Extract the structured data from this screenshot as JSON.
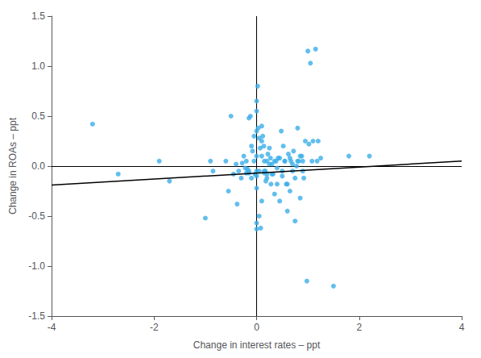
{
  "chart_data": {
    "type": "scatter",
    "xlabel": "Change in interest rates – ppt",
    "ylabel": "Change in ROAs – ppt",
    "xlim": [
      -4,
      4
    ],
    "ylim": [
      -1.5,
      1.5
    ],
    "xticks": [
      -4,
      -2,
      0,
      2,
      4
    ],
    "yticks": [
      -1.5,
      {
        "value": -1.0,
        "label": "-1.0"
      },
      -0.5,
      {
        "value": 0.0,
        "label": "0.0"
      },
      0.5,
      {
        "value": 1.0,
        "label": "1.0"
      },
      1.5
    ],
    "grid": false,
    "reference_lines": {
      "x": [
        0
      ],
      "y": [
        0
      ],
      "color": "#000000"
    },
    "series": [
      {
        "type": "scatter",
        "color": "#3BAEE8",
        "x": [
          -3.2,
          -2.7,
          -1.9,
          -1.7,
          -1.0,
          -0.9,
          -0.85,
          -0.6,
          -0.55,
          -0.5,
          -0.45,
          -0.4,
          -0.38,
          -0.35,
          -0.3,
          -0.28,
          -0.25,
          -0.22,
          -0.2,
          -0.18,
          -0.15,
          -0.12,
          -0.1,
          -0.08,
          -0.05,
          -0.03,
          0.0,
          0.0,
          0.0,
          0.0,
          0.0,
          0.02,
          0.03,
          0.05,
          0.07,
          0.08,
          0.1,
          0.12,
          0.14,
          0.15,
          0.17,
          0.18,
          0.2,
          0.22,
          0.25,
          0.27,
          0.28,
          0.3,
          0.32,
          0.35,
          0.38,
          0.4,
          0.42,
          0.45,
          0.48,
          0.5,
          0.52,
          0.55,
          0.58,
          0.6,
          0.62,
          0.65,
          0.67,
          0.7,
          0.72,
          0.75,
          0.78,
          0.8,
          0.82,
          0.85,
          0.88,
          0.9,
          0.92,
          0.95,
          0.98,
          1.0,
          1.02,
          1.05,
          1.08,
          1.1,
          1.15,
          1.18,
          1.2,
          1.25,
          1.5,
          1.8,
          2.2,
          -0.15,
          -0.1,
          -0.05,
          0.0,
          0.05,
          0.1,
          0.15,
          0.2,
          0.25,
          0.3,
          0.35,
          0.4,
          0.45,
          0.5,
          0.55,
          0.6,
          0.65,
          0.7,
          0.75,
          0.8,
          0.85,
          0.9,
          0.0,
          0.05,
          0.1,
          -0.2,
          -0.15,
          0.0,
          0.1,
          0.2,
          0.0,
          0.15
        ],
        "values": [
          0.42,
          -0.08,
          0.05,
          -0.15,
          -0.52,
          0.05,
          -0.05,
          0.05,
          -0.25,
          0.5,
          -0.08,
          0.02,
          -0.38,
          -0.05,
          -0.12,
          0.03,
          0.1,
          -0.02,
          0.05,
          -0.03,
          0.48,
          0.5,
          0.2,
          0.15,
          0.3,
          -0.08,
          0.65,
          0.55,
          0.35,
          0.1,
          -0.05,
          0.8,
          0.38,
          0.28,
          0.18,
          -0.62,
          0.4,
          0.3,
          0.2,
          0.05,
          -0.05,
          -0.15,
          0.05,
          0.12,
          0.18,
          0.08,
          -0.18,
          0.02,
          -0.08,
          -0.28,
          0.05,
          -0.02,
          0.08,
          -0.35,
          0.35,
          -0.1,
          0.2,
          0.05,
          -0.18,
          -0.45,
          0.12,
          -0.25,
          0.05,
          -0.05,
          0.15,
          -0.55,
          0.0,
          0.38,
          0.05,
          -0.32,
          0.1,
          0.05,
          -0.12,
          0.25,
          -1.15,
          1.15,
          0.22,
          1.03,
          0.05,
          0.25,
          1.17,
          0.05,
          0.25,
          0.08,
          -1.2,
          0.1,
          0.1,
          -0.05,
          -0.12,
          0.05,
          -0.22,
          -0.05,
          0.1,
          -0.05,
          -0.12,
          0.02,
          -0.08,
          0.05,
          -0.18,
          0.08,
          -0.05,
          0.05,
          -0.18,
          0.08,
          0.02,
          -0.12,
          0.05,
          0.1,
          -0.05,
          -0.57,
          -0.5,
          0.25,
          -0.07,
          -0.07,
          -0.63,
          -0.35,
          -0.08,
          -0.1,
          -0.07
        ]
      },
      {
        "type": "line",
        "color": "#000000",
        "x": [
          -4,
          4
        ],
        "values": [
          -0.19,
          0.05
        ]
      }
    ]
  }
}
